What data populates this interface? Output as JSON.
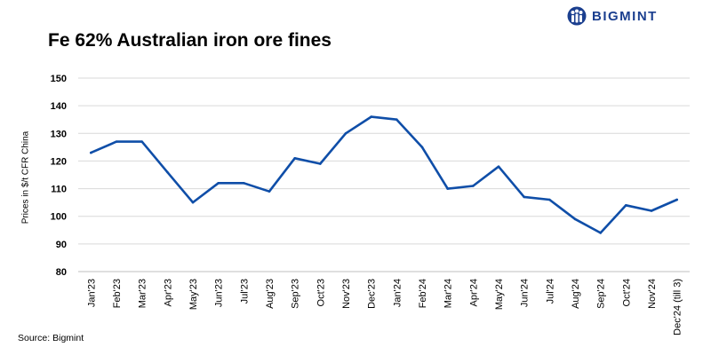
{
  "brand": {
    "name": "BIGMINT",
    "color": "#1b3f8f",
    "icon": "bigmint-people-logo-icon"
  },
  "chart_data": {
    "type": "line",
    "title": "Fe 62% Australian iron ore fines",
    "xlabel": "",
    "ylabel": "Prices in $/t CFR China",
    "categories": [
      "Jan'23",
      "Feb'23",
      "Mar'23",
      "Apr'23",
      "May'23",
      "Jun'23",
      "Jul'23",
      "Aug'23",
      "Sep'23",
      "Oct'23",
      "Nov'23",
      "Dec'23",
      "Jan'24",
      "Feb'24",
      "Mar'24",
      "Apr'24",
      "May'24",
      "Jun'24",
      "Jul'24",
      "Aug'24",
      "Sep'24",
      "Oct'24",
      "Nov'24",
      "Dec'24 (till 3)"
    ],
    "series": [
      {
        "values": [
          123,
          127,
          127,
          116,
          105,
          112,
          112,
          109,
          121,
          119,
          130,
          136,
          135,
          125,
          110,
          111,
          118,
          107,
          106,
          99,
          94,
          104,
          102,
          106
        ],
        "color": "#0f4ea8"
      }
    ],
    "ylim": [
      80,
      150
    ],
    "yticks": [
      80,
      90,
      100,
      110,
      120,
      130,
      140,
      150
    ],
    "grid": true,
    "legend": "none"
  },
  "source": "Source: Bigmint"
}
